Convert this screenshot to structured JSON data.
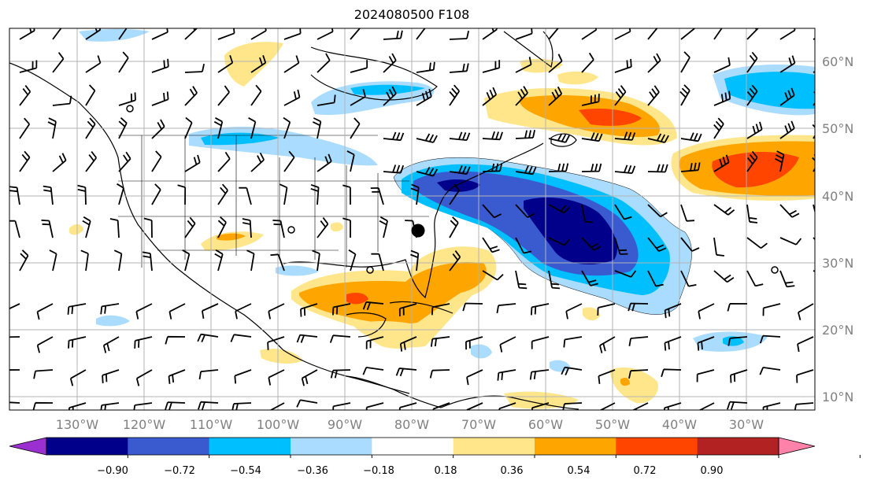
{
  "title": "2024080500 F108",
  "lon_labels": [
    "130°W",
    "120°W",
    "110°W",
    "100°W",
    "90°W",
    "80°W",
    "70°W",
    "60°W",
    "50°W",
    "40°W",
    "30°W"
  ],
  "lat_labels": [
    "60°N",
    "50°N",
    "40°N",
    "30°N",
    "20°N",
    "10°N"
  ],
  "colorbar": {
    "ticks": [
      "−0.90",
      "−0.72",
      "−0.54",
      "−0.36",
      "−0.18",
      "0.18",
      "0.36",
      "0.54",
      "0.72",
      "0.90"
    ],
    "colors": [
      "#9b30d0",
      "#00008b",
      "#3a5bd0",
      "#00bfff",
      "#aadcff",
      "#ffffff",
      "#ffe68a",
      "#ffa500",
      "#ff4500",
      "#b22222",
      "#ff82ab"
    ]
  },
  "palette": {
    "dark_blue": "#00008b",
    "mid_blue": "#3a5bd0",
    "cyan": "#00bfff",
    "light_blue": "#aadcff",
    "light_yellow": "#ffe68a",
    "orange": "#ffa500",
    "red_orange": "#ff4500"
  },
  "marker": "storm-center-dot"
}
